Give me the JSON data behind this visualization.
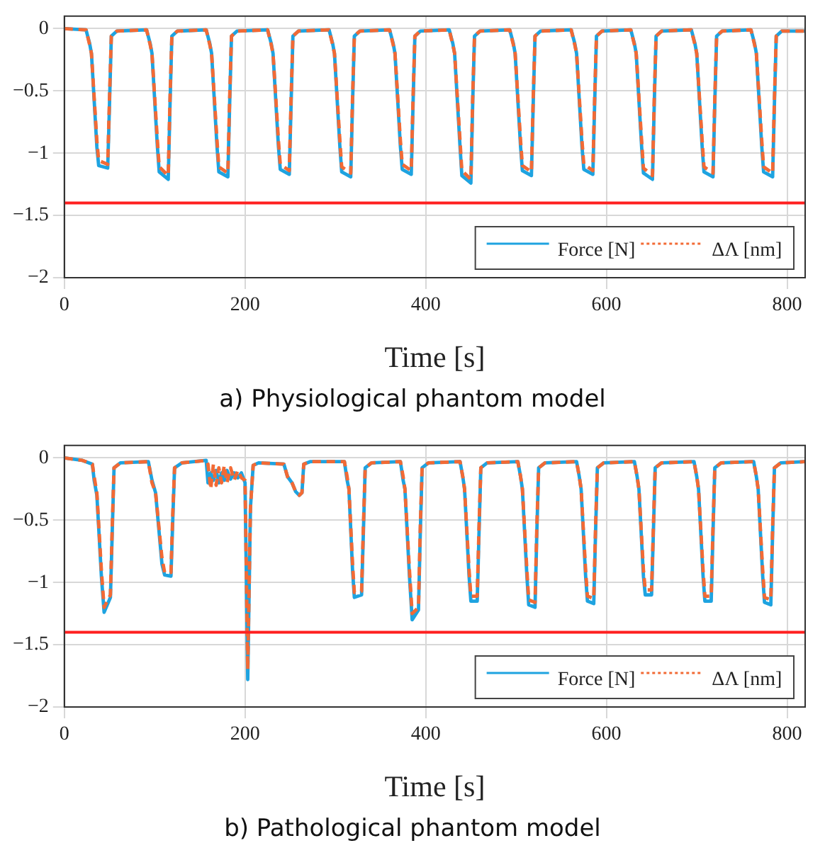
{
  "chart_data": [
    {
      "type": "line",
      "xlabel": "Time [s]",
      "annotations": [
        "a) Physiological phantom model"
      ],
      "legend": "bottom right",
      "grid": true,
      "xlim": [
        0,
        820
      ],
      "xticks": [
        0,
        200,
        400,
        600,
        800
      ],
      "ylim": [
        -2,
        0.1
      ],
      "yticks": [
        {
          "value": -2,
          "label": "−2"
        },
        {
          "value": -1.5,
          "label": "−1.5"
        },
        {
          "value": -1,
          "label": "−1"
        },
        {
          "value": -0.5,
          "label": "−0.5"
        },
        0
      ],
      "ref_lines": [
        {
          "axis": "y",
          "value": -1.4,
          "color": "#ff2020"
        }
      ],
      "x": [
        0,
        24,
        28,
        30,
        36,
        38,
        48,
        50,
        52,
        58,
        91,
        95,
        97,
        103,
        105,
        115,
        117,
        119,
        125,
        157,
        161,
        163,
        169,
        171,
        181,
        183,
        185,
        191,
        225,
        229,
        231,
        237,
        239,
        249,
        251,
        253,
        259,
        293,
        297,
        299,
        305,
        307,
        317,
        319,
        321,
        327,
        360,
        364,
        366,
        372,
        374,
        384,
        386,
        388,
        394,
        426,
        430,
        432,
        438,
        440,
        450,
        452,
        454,
        460,
        493,
        497,
        499,
        505,
        507,
        517,
        519,
        521,
        527,
        561,
        565,
        567,
        573,
        575,
        585,
        587,
        589,
        595,
        627,
        631,
        633,
        639,
        641,
        651,
        653,
        655,
        661,
        694,
        698,
        700,
        706,
        708,
        718,
        720,
        722,
        728,
        760,
        764,
        766,
        772,
        774,
        784,
        786,
        788,
        794,
        820
      ],
      "series": [
        {
          "name": "Force [N]",
          "color": "#1ea3e0",
          "line_style": "solid",
          "values": [
            0,
            -0.01,
            -0.12,
            -0.2,
            -0.95,
            -1.1,
            -1.12,
            -0.6,
            -0.06,
            -0.02,
            -0.01,
            -0.12,
            -0.2,
            -0.95,
            -1.15,
            -1.21,
            -0.6,
            -0.06,
            -0.02,
            -0.01,
            -0.12,
            -0.2,
            -0.95,
            -1.15,
            -1.19,
            -0.6,
            -0.06,
            -0.02,
            -0.01,
            -0.12,
            -0.2,
            -0.95,
            -1.13,
            -1.17,
            -0.6,
            -0.06,
            -0.02,
            -0.01,
            -0.12,
            -0.2,
            -0.95,
            -1.15,
            -1.19,
            -0.6,
            -0.06,
            -0.02,
            -0.01,
            -0.12,
            -0.2,
            -0.95,
            -1.13,
            -1.17,
            -0.6,
            -0.06,
            -0.02,
            -0.01,
            -0.12,
            -0.2,
            -0.95,
            -1.18,
            -1.24,
            -0.6,
            -0.06,
            -0.02,
            -0.01,
            -0.12,
            -0.2,
            -0.95,
            -1.14,
            -1.18,
            -0.6,
            -0.06,
            -0.02,
            -0.01,
            -0.12,
            -0.2,
            -0.95,
            -1.13,
            -1.17,
            -0.6,
            -0.06,
            -0.02,
            -0.01,
            -0.12,
            -0.2,
            -0.95,
            -1.16,
            -1.21,
            -0.6,
            -0.06,
            -0.02,
            -0.01,
            -0.12,
            -0.2,
            -0.95,
            -1.15,
            -1.19,
            -0.6,
            -0.06,
            -0.02,
            -0.01,
            -0.12,
            -0.2,
            -0.95,
            -1.15,
            -1.19,
            -0.6,
            -0.06,
            -0.02,
            -0.02
          ]
        },
        {
          "name": "ΔΛ [nm]",
          "color": "#f26a35",
          "line_style": "dashed",
          "values": [
            0,
            -0.01,
            -0.13,
            -0.2,
            -0.9,
            -1.06,
            -1.09,
            -0.55,
            -0.06,
            -0.02,
            -0.01,
            -0.13,
            -0.2,
            -0.9,
            -1.11,
            -1.18,
            -0.55,
            -0.06,
            -0.02,
            -0.01,
            -0.13,
            -0.2,
            -0.9,
            -1.11,
            -1.16,
            -0.55,
            -0.06,
            -0.02,
            -0.01,
            -0.13,
            -0.2,
            -0.9,
            -1.09,
            -1.14,
            -0.55,
            -0.06,
            -0.02,
            -0.01,
            -0.13,
            -0.2,
            -0.9,
            -1.11,
            -1.16,
            -0.55,
            -0.06,
            -0.02,
            -0.01,
            -0.13,
            -0.2,
            -0.9,
            -1.09,
            -1.14,
            -0.55,
            -0.06,
            -0.02,
            -0.01,
            -0.13,
            -0.2,
            -0.9,
            -1.14,
            -1.21,
            -0.55,
            -0.06,
            -0.02,
            -0.01,
            -0.13,
            -0.2,
            -0.9,
            -1.1,
            -1.15,
            -0.55,
            -0.06,
            -0.02,
            -0.01,
            -0.13,
            -0.2,
            -0.9,
            -1.09,
            -1.14,
            -0.55,
            -0.06,
            -0.02,
            -0.01,
            -0.13,
            -0.2,
            -0.9,
            -1.12,
            -1.18,
            -0.55,
            -0.06,
            -0.02,
            -0.01,
            -0.13,
            -0.2,
            -0.9,
            -1.11,
            -1.16,
            -0.55,
            -0.06,
            -0.02,
            -0.01,
            -0.13,
            -0.2,
            -0.9,
            -1.11,
            -1.16,
            -0.55,
            -0.06,
            -0.02,
            -0.02
          ]
        }
      ]
    },
    {
      "type": "line",
      "xlabel": "Time [s]",
      "annotations": [
        "b) Pathological phantom model"
      ],
      "legend": "bottom right",
      "grid": true,
      "xlim": [
        0,
        820
      ],
      "xticks": [
        0,
        200,
        400,
        600,
        800
      ],
      "ylim": [
        -2,
        0.1
      ],
      "yticks": [
        {
          "value": -2,
          "label": "−2"
        },
        {
          "value": -1.5,
          "label": "−1.5"
        },
        {
          "value": -1,
          "label": "−1"
        },
        {
          "value": -0.5,
          "label": "−0.5"
        },
        0
      ],
      "ref_lines": [
        {
          "axis": "y",
          "value": -1.4,
          "color": "#ff2020"
        }
      ],
      "x": [
        0,
        20,
        31,
        33,
        36,
        41,
        44,
        51,
        53,
        55,
        62,
        93,
        97,
        101,
        108,
        111,
        118,
        120,
        122,
        130,
        157,
        159,
        162,
        165,
        168,
        171,
        174,
        177,
        180,
        184,
        188,
        192,
        196,
        200,
        203,
        206,
        209,
        215,
        243,
        247,
        252,
        256,
        260,
        263,
        265,
        272,
        310,
        313,
        315,
        319,
        321,
        329,
        331,
        333,
        340,
        372,
        375,
        377,
        382,
        385,
        392,
        394,
        396,
        403,
        438,
        441,
        443,
        448,
        450,
        457,
        459,
        461,
        468,
        502,
        505,
        507,
        512,
        514,
        521,
        523,
        525,
        532,
        567,
        570,
        572,
        577,
        579,
        586,
        588,
        590,
        597,
        631,
        634,
        636,
        641,
        643,
        650,
        652,
        654,
        661,
        697,
        700,
        702,
        707,
        709,
        716,
        718,
        720,
        727,
        763,
        766,
        768,
        773,
        775,
        782,
        784,
        786,
        793,
        820
      ],
      "series": [
        {
          "name": "Force [N]",
          "color": "#1ea3e0",
          "line_style": "solid",
          "values": [
            0,
            -0.02,
            -0.05,
            -0.18,
            -0.3,
            -0.95,
            -1.24,
            -1.12,
            -0.6,
            -0.08,
            -0.04,
            -0.03,
            -0.18,
            -0.28,
            -0.85,
            -0.94,
            -0.95,
            -0.5,
            -0.08,
            -0.04,
            -0.02,
            -0.2,
            -0.12,
            -0.18,
            -0.1,
            -0.2,
            -0.12,
            -0.18,
            -0.1,
            -0.17,
            -0.12,
            -0.16,
            -0.12,
            -0.2,
            -1.78,
            -0.4,
            -0.06,
            -0.04,
            -0.05,
            -0.15,
            -0.2,
            -0.27,
            -0.3,
            -0.28,
            -0.05,
            -0.03,
            -0.03,
            -0.18,
            -0.25,
            -0.9,
            -1.12,
            -1.1,
            -0.6,
            -0.08,
            -0.04,
            -0.03,
            -0.18,
            -0.25,
            -0.95,
            -1.3,
            -1.22,
            -0.6,
            -0.08,
            -0.04,
            -0.03,
            -0.15,
            -0.25,
            -0.95,
            -1.15,
            -1.15,
            -0.6,
            -0.08,
            -0.04,
            -0.03,
            -0.15,
            -0.25,
            -0.95,
            -1.18,
            -1.2,
            -0.6,
            -0.08,
            -0.04,
            -0.03,
            -0.15,
            -0.25,
            -0.95,
            -1.15,
            -1.17,
            -0.6,
            -0.08,
            -0.04,
            -0.03,
            -0.15,
            -0.25,
            -0.95,
            -1.1,
            -1.1,
            -0.6,
            -0.08,
            -0.04,
            -0.03,
            -0.15,
            -0.25,
            -0.95,
            -1.15,
            -1.15,
            -0.6,
            -0.08,
            -0.04,
            -0.03,
            -0.15,
            -0.25,
            -0.95,
            -1.16,
            -1.18,
            -0.6,
            -0.08,
            -0.04,
            -0.03
          ]
        },
        {
          "name": "ΔΛ [nm]",
          "color": "#f26a35",
          "line_style": "dashed",
          "values": [
            0,
            -0.02,
            -0.05,
            -0.15,
            -0.28,
            -0.9,
            -1.2,
            -1.1,
            -0.55,
            -0.08,
            -0.04,
            -0.03,
            -0.2,
            -0.28,
            -0.8,
            -0.92,
            -0.92,
            -0.45,
            -0.08,
            -0.04,
            -0.02,
            -0.05,
            -0.25,
            -0.05,
            -0.22,
            -0.08,
            -0.2,
            -0.06,
            -0.2,
            -0.08,
            -0.18,
            -0.1,
            -0.16,
            -0.18,
            -1.7,
            -0.4,
            -0.06,
            -0.04,
            -0.05,
            -0.15,
            -0.2,
            -0.27,
            -0.3,
            -0.28,
            -0.05,
            -0.03,
            -0.03,
            -0.15,
            -0.25,
            -0.85,
            -1.08,
            -1.07,
            -0.55,
            -0.08,
            -0.04,
            -0.03,
            -0.15,
            -0.25,
            -0.9,
            -1.25,
            -1.2,
            -0.55,
            -0.08,
            -0.04,
            -0.03,
            -0.15,
            -0.25,
            -0.9,
            -1.11,
            -1.11,
            -0.55,
            -0.08,
            -0.04,
            -0.03,
            -0.15,
            -0.25,
            -0.9,
            -1.14,
            -1.16,
            -0.55,
            -0.08,
            -0.04,
            -0.03,
            -0.15,
            -0.25,
            -0.9,
            -1.11,
            -1.13,
            -0.55,
            -0.08,
            -0.04,
            -0.03,
            -0.15,
            -0.25,
            -0.9,
            -1.06,
            -1.06,
            -0.55,
            -0.08,
            -0.04,
            -0.03,
            -0.15,
            -0.25,
            -0.9,
            -1.11,
            -1.11,
            -0.55,
            -0.08,
            -0.04,
            -0.03,
            -0.15,
            -0.25,
            -0.9,
            -1.12,
            -1.14,
            -0.55,
            -0.08,
            -0.04,
            -0.03
          ]
        }
      ]
    }
  ]
}
